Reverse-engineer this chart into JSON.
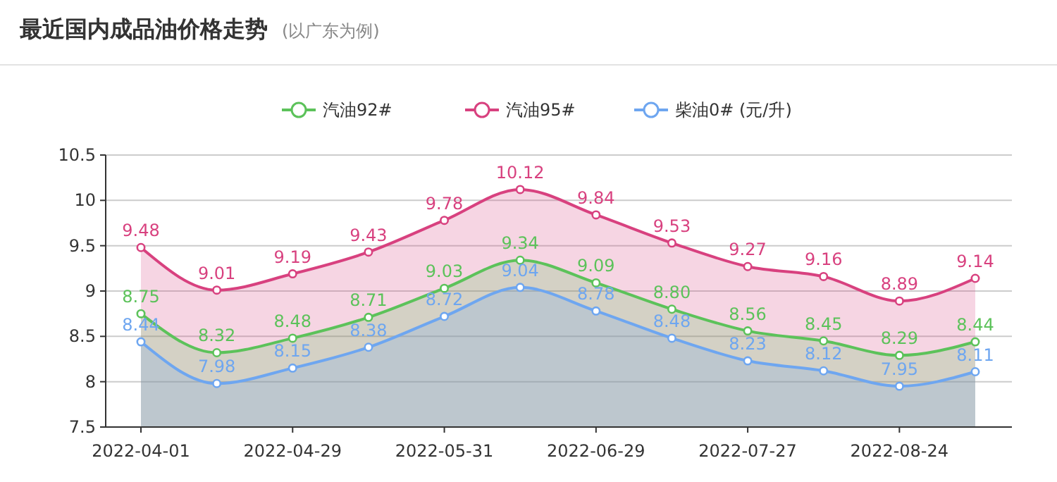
{
  "chart_data": {
    "type": "area",
    "title": "最近国内成品油价格走势",
    "subtitle": "(以广东为例)",
    "categories": [
      "2022-04-01",
      null,
      "2022-04-29",
      null,
      "2022-05-31",
      null,
      "2022-06-29",
      null,
      "2022-07-27",
      null,
      "2022-08-24",
      null
    ],
    "ylim": [
      7.5,
      10.5
    ],
    "yticks": [
      7.5,
      8,
      8.5,
      9,
      9.5,
      10,
      10.5
    ],
    "grid": "y",
    "legend": "top",
    "marker": "circle",
    "series": [
      {
        "name": "汽油95#",
        "color": "#d8417f",
        "values": [
          9.48,
          9.01,
          9.19,
          9.43,
          9.78,
          10.12,
          9.84,
          9.53,
          9.27,
          9.16,
          8.89,
          9.14
        ],
        "value_labels": [
          "9.48",
          "9.01",
          "9.19",
          "9.43",
          "9.78",
          "10.12",
          "9.84",
          "9.53",
          "9.27",
          "9.16",
          "8.89",
          "9.14"
        ]
      },
      {
        "name": "汽油92#",
        "color": "#5cc25a",
        "values": [
          8.75,
          8.32,
          8.48,
          8.71,
          9.03,
          9.34,
          9.09,
          8.8,
          8.56,
          8.45,
          8.29,
          8.44
        ],
        "value_labels": [
          "8.75",
          "8.32",
          "8.48",
          "8.71",
          "9.03",
          "9.34",
          "9.09",
          "8.80",
          "8.56",
          "8.45",
          "8.29",
          "8.44"
        ]
      },
      {
        "name": "柴油0# (元/升)",
        "color": "#6ea6f0",
        "values": [
          8.44,
          7.98,
          8.15,
          8.38,
          8.72,
          9.04,
          8.78,
          8.48,
          8.23,
          8.12,
          7.95,
          8.11
        ],
        "value_labels": [
          "8.44",
          "7.98",
          "8.15",
          "8.38",
          "8.72",
          "9.04",
          "8.78",
          "8.48",
          "8.23",
          "8.12",
          "7.95",
          "8.11"
        ]
      }
    ]
  }
}
